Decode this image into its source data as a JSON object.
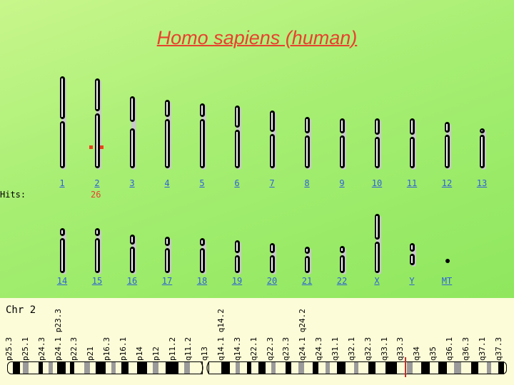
{
  "title": "Homo sapiens (human)",
  "hits_label": "Hits:",
  "colors": {
    "accent": "#e8412e",
    "link": "#2f62d8",
    "top_bg": "#a6ee72",
    "bottom_bg": "#fcfcd8"
  },
  "chromosomes": [
    {
      "label": "1",
      "hits": ""
    },
    {
      "label": "2",
      "hits": "26"
    },
    {
      "label": "3",
      "hits": ""
    },
    {
      "label": "4",
      "hits": ""
    },
    {
      "label": "5",
      "hits": ""
    },
    {
      "label": "6",
      "hits": ""
    },
    {
      "label": "7",
      "hits": ""
    },
    {
      "label": "8",
      "hits": ""
    },
    {
      "label": "9",
      "hits": ""
    },
    {
      "label": "10",
      "hits": ""
    },
    {
      "label": "11",
      "hits": ""
    },
    {
      "label": "12",
      "hits": ""
    },
    {
      "label": "13",
      "hits": ""
    },
    {
      "label": "14",
      "hits": ""
    },
    {
      "label": "15",
      "hits": ""
    },
    {
      "label": "16",
      "hits": ""
    },
    {
      "label": "17",
      "hits": ""
    },
    {
      "label": "18",
      "hits": ""
    },
    {
      "label": "19",
      "hits": ""
    },
    {
      "label": "20",
      "hits": ""
    },
    {
      "label": "21",
      "hits": ""
    },
    {
      "label": "22",
      "hits": ""
    },
    {
      "label": "X",
      "hits": ""
    },
    {
      "label": "Y",
      "hits": ""
    },
    {
      "label": "MT",
      "hits": ""
    }
  ],
  "detail": {
    "title": "Chr 2",
    "bands": [
      "p25.3",
      "p25.1",
      "p24.3",
      "p24.1 p23.3",
      "p22.3",
      "p21",
      "p16.3",
      "p16.1",
      "p14",
      "p12",
      "p11.2",
      "q11.2",
      "q13",
      "q14.1 q14.2",
      "q14.3",
      "q22.1",
      "q22.3",
      "q23.3",
      "q24.1 q24.2",
      "q24.3",
      "q31.1",
      "q32.1",
      "q32.3",
      "q33.1",
      "q33.3",
      "q34",
      "q35",
      "q36.1",
      "q36.3",
      "q37.1",
      "q37.3"
    ]
  }
}
